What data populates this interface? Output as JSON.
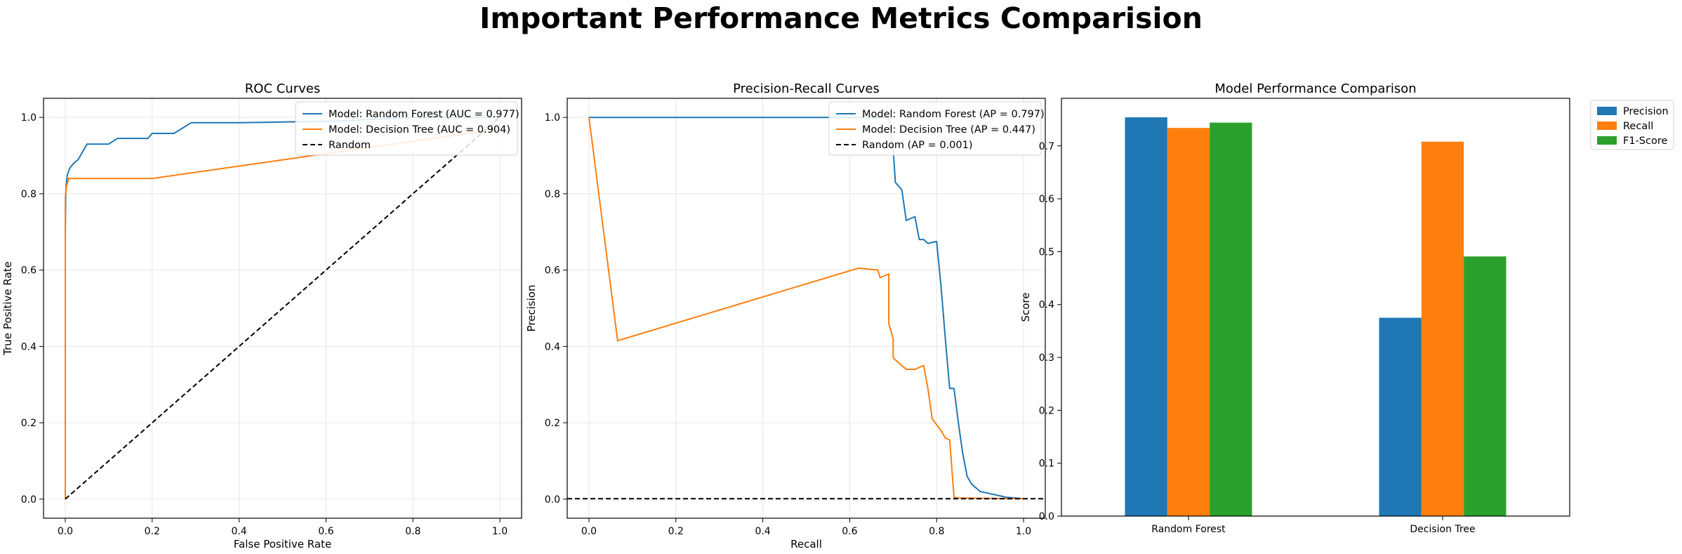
{
  "figure": {
    "title": "Important Performance Metrics Comparision"
  },
  "colors": {
    "blue": "#1f77b4",
    "orange": "#ff7f0e",
    "green": "#2ca02c",
    "black": "#000000",
    "grid": "#e6e6e6"
  },
  "chart_data": [
    {
      "type": "line",
      "title": "ROC Curves",
      "xlabel": "False Positive Rate",
      "ylabel": "True Positive Rate",
      "xlim": [
        -0.05,
        1.05
      ],
      "ylim": [
        -0.05,
        1.05
      ],
      "xticks": [
        "0.0",
        "0.2",
        "0.4",
        "0.6",
        "0.8",
        "1.0"
      ],
      "yticks": [
        "0.0",
        "0.2",
        "0.4",
        "0.6",
        "0.8",
        "1.0"
      ],
      "grid": true,
      "legend_position": "top-right",
      "series": [
        {
          "name": "Model: Random Forest (AUC = 0.977)",
          "color": "#1f77b4",
          "dash": "solid",
          "x": [
            0,
            0.0,
            0.001,
            0.002,
            0.004,
            0.005,
            0.008,
            0.012,
            0.02,
            0.03,
            0.04,
            0.05,
            0.1,
            0.12,
            0.19,
            0.2,
            0.25,
            0.27,
            0.29,
            0.4,
            0.6,
            0.62,
            0.8,
            1.0
          ],
          "y": [
            0,
            0.68,
            0.79,
            0.82,
            0.84,
            0.85,
            0.86,
            0.87,
            0.88,
            0.89,
            0.91,
            0.93,
            0.93,
            0.945,
            0.945,
            0.958,
            0.958,
            0.972,
            0.986,
            0.986,
            0.99,
            0.99,
            1.0,
            1.0
          ]
        },
        {
          "name": "Model: Decision Tree (AUC = 0.904)",
          "color": "#ff7f0e",
          "dash": "solid",
          "x": [
            0,
            0.0,
            0.0,
            0.003,
            0.008,
            0.2,
            1.0
          ],
          "y": [
            0,
            0.6,
            0.79,
            0.82,
            0.84,
            0.84,
            0.97
          ]
        },
        {
          "name": "Random",
          "color": "#000000",
          "dash": "dashed",
          "x": [
            0,
            1
          ],
          "y": [
            0,
            1
          ]
        }
      ]
    },
    {
      "type": "line",
      "title": "Precision-Recall Curves",
      "xlabel": "Recall",
      "ylabel": "Precision",
      "xlim": [
        -0.05,
        1.05
      ],
      "ylim": [
        -0.05,
        1.05
      ],
      "xticks": [
        "0.0",
        "0.2",
        "0.4",
        "0.6",
        "0.8",
        "1.0"
      ],
      "yticks": [
        "0.0",
        "0.2",
        "0.4",
        "0.6",
        "0.8",
        "1.0"
      ],
      "grid": true,
      "legend_position": "top-right",
      "series": [
        {
          "name": "Model: Random Forest (AP = 0.797)",
          "color": "#1f77b4",
          "dash": "solid",
          "x": [
            0.0,
            0.69,
            0.7,
            0.705,
            0.72,
            0.73,
            0.75,
            0.76,
            0.77,
            0.78,
            0.8,
            0.81,
            0.82,
            0.83,
            0.84,
            0.85,
            0.86,
            0.87,
            0.88,
            0.89,
            0.9,
            0.92,
            0.94,
            0.96,
            1.0
          ],
          "y": [
            1.0,
            1.0,
            0.92,
            0.83,
            0.81,
            0.73,
            0.74,
            0.68,
            0.68,
            0.67,
            0.675,
            0.56,
            0.42,
            0.29,
            0.29,
            0.2,
            0.12,
            0.06,
            0.04,
            0.03,
            0.02,
            0.015,
            0.01,
            0.005,
            0.001
          ]
        },
        {
          "name": "Model: Decision Tree (AP = 0.447)",
          "color": "#ff7f0e",
          "dash": "solid",
          "x": [
            0.0,
            0.066,
            0.62,
            0.665,
            0.67,
            0.69,
            0.69,
            0.7,
            0.7,
            0.73,
            0.75,
            0.77,
            0.78,
            0.79,
            0.81,
            0.82,
            0.83,
            0.84,
            0.85,
            1.0
          ],
          "y": [
            1.0,
            0.415,
            0.605,
            0.6,
            0.58,
            0.59,
            0.46,
            0.42,
            0.37,
            0.34,
            0.34,
            0.35,
            0.29,
            0.21,
            0.18,
            0.16,
            0.155,
            0.005,
            0.003,
            0.001
          ]
        },
        {
          "name": "Random (AP = 0.001)",
          "color": "#000000",
          "dash": "dashed",
          "x": [
            -0.05,
            1.05
          ],
          "y": [
            0.001,
            0.001
          ]
        }
      ]
    },
    {
      "type": "bar",
      "title": "Model Performance Comparison",
      "xlabel": "",
      "ylabel": "Score",
      "categories": [
        "Random Forest",
        "Decision Tree"
      ],
      "ylim": [
        0,
        0.79
      ],
      "yticks": [
        "0.0",
        "0.1",
        "0.2",
        "0.3",
        "0.4",
        "0.5",
        "0.6",
        "0.7"
      ],
      "grid": false,
      "legend_position": "outside-right",
      "series": [
        {
          "name": "Precision",
          "color": "#1f77b4",
          "values": [
            0.754,
            0.375
          ]
        },
        {
          "name": "Recall",
          "color": "#ff7f0e",
          "values": [
            0.734,
            0.708
          ]
        },
        {
          "name": "F1-Score",
          "color": "#2ca02c",
          "values": [
            0.744,
            0.491
          ]
        }
      ]
    }
  ]
}
